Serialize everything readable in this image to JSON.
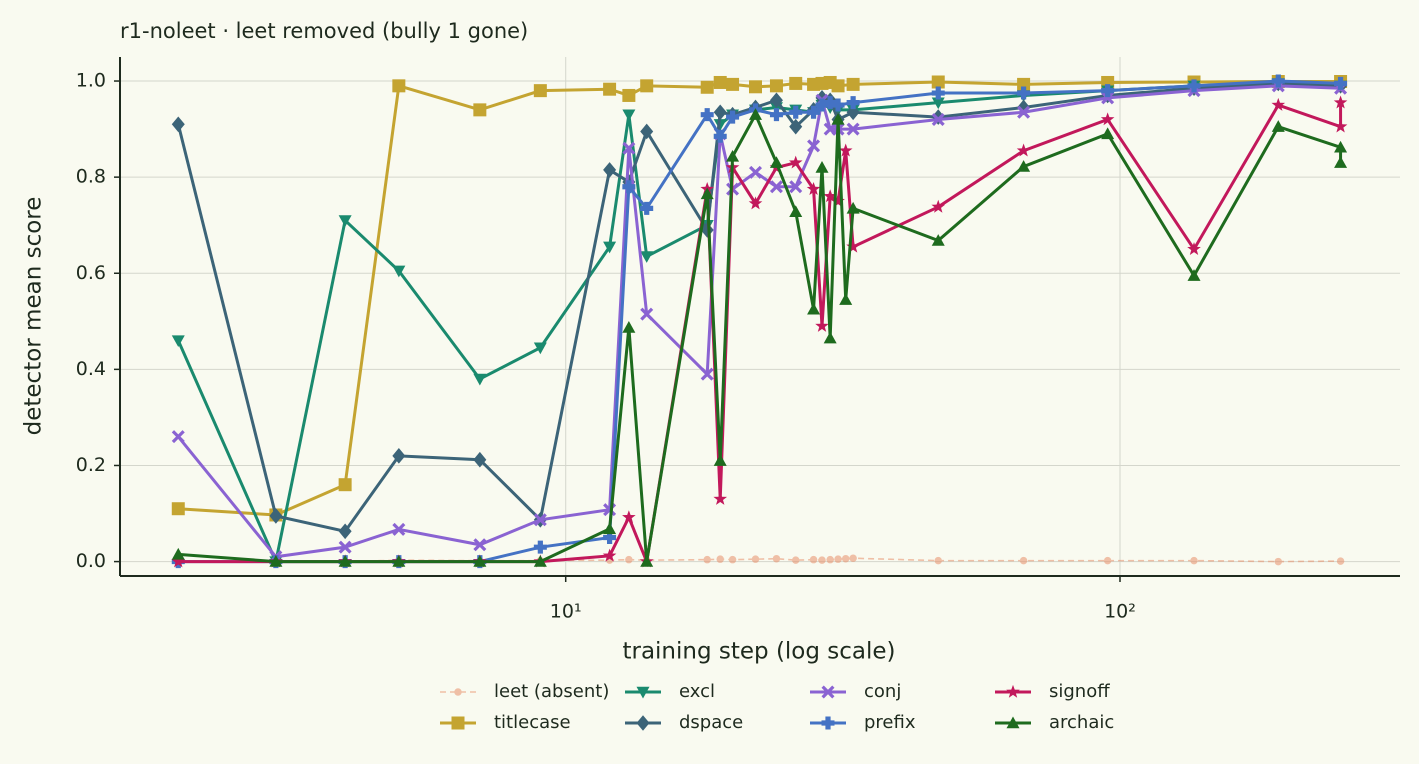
{
  "chart_data": {
    "type": "line",
    "title": "r1-noleet · leet removed (bully 1 gone)",
    "xlabel": "training step (log scale)",
    "ylabel": "detector mean score",
    "xscale": "log",
    "xlim": [
      1.57,
      320
    ],
    "ylim": [
      -0.03,
      1.05
    ],
    "xticks": [
      {
        "value": 10,
        "label": "10¹"
      },
      {
        "value": 100,
        "label": "10²"
      }
    ],
    "yticks": [
      {
        "value": 0,
        "label": "0.0"
      },
      {
        "value": 0.2,
        "label": "0.2"
      },
      {
        "value": 0.4,
        "label": "0.4"
      },
      {
        "value": 0.6,
        "label": "0.6"
      },
      {
        "value": 0.8,
        "label": "0.8"
      },
      {
        "value": 1,
        "label": "1.0"
      }
    ],
    "grid": true,
    "legend": "bottom",
    "series": [
      {
        "name": "leet (absent)",
        "color": "#e8906a",
        "marker": "o",
        "linestyle": "dashed",
        "x": [
          2,
          3,
          4,
          5,
          7,
          9,
          12,
          13,
          14,
          18,
          19,
          20,
          22,
          24,
          26,
          28,
          29,
          30,
          31,
          32,
          33,
          47,
          67,
          95,
          136,
          193,
          250
        ],
        "values": [
          0,
          0,
          0,
          0.003,
          0.002,
          0.002,
          0.003,
          0.004,
          0.003,
          0.004,
          0.005,
          0.004,
          0.005,
          0.006,
          0.003,
          0.004,
          0.003,
          0.004,
          0.005,
          0.006,
          0.007,
          0.002,
          0.002,
          0.002,
          0.002,
          0,
          0.001
        ]
      },
      {
        "name": "titlecase",
        "color": "#c4a431",
        "marker": "s",
        "linestyle": "solid",
        "x": [
          2,
          3,
          4,
          5,
          7,
          9,
          12,
          13,
          14,
          18,
          19,
          20,
          22,
          24,
          26,
          28,
          29,
          30,
          31,
          33,
          47,
          67,
          95,
          136,
          193,
          250
        ],
        "values": [
          0.11,
          0.097,
          0.16,
          0.99,
          0.94,
          0.98,
          0.983,
          0.97,
          0.99,
          0.987,
          0.997,
          0.993,
          0.988,
          0.99,
          0.995,
          0.993,
          0.995,
          0.997,
          0.99,
          0.993,
          0.998,
          0.993,
          0.997,
          0.998,
          0.999,
          0.999
        ]
      },
      {
        "name": "excl",
        "color": "#1a8a6e",
        "marker": "v",
        "linestyle": "solid",
        "x": [
          2,
          3,
          4,
          5,
          7,
          9,
          12,
          13,
          14,
          18,
          19,
          20,
          22,
          24,
          26,
          28,
          29,
          30,
          31,
          33,
          47,
          67,
          95,
          136,
          193,
          250
        ],
        "values": [
          0.46,
          0,
          0.71,
          0.605,
          0.38,
          0.445,
          0.655,
          0.93,
          0.635,
          0.7,
          0.91,
          0.93,
          0.94,
          0.945,
          0.94,
          0.935,
          0.95,
          0.945,
          0.94,
          0.94,
          0.955,
          0.97,
          0.98,
          0.99,
          0.995,
          0.99
        ]
      },
      {
        "name": "dspace",
        "color": "#3c6478",
        "marker": "D",
        "linestyle": "solid",
        "x": [
          2,
          3,
          4,
          5,
          7,
          9,
          12,
          13,
          14,
          18,
          19,
          20,
          22,
          24,
          26,
          28,
          29,
          30,
          31,
          33,
          47,
          67,
          95,
          136,
          193,
          250
        ],
        "values": [
          0.91,
          0.095,
          0.063,
          0.22,
          0.212,
          0.087,
          0.815,
          0.79,
          0.895,
          0.69,
          0.935,
          0.93,
          0.945,
          0.96,
          0.905,
          0.94,
          0.965,
          0.96,
          0.92,
          0.935,
          0.925,
          0.945,
          0.97,
          0.985,
          0.995,
          0.99
        ]
      },
      {
        "name": "conj",
        "color": "#8a63d2",
        "marker": "X",
        "linestyle": "solid",
        "x": [
          2,
          3,
          4,
          5,
          7,
          9,
          12,
          13,
          14,
          18,
          19,
          20,
          22,
          24,
          26,
          28,
          29,
          30,
          31,
          33,
          47,
          67,
          95,
          136,
          193,
          250
        ],
        "values": [
          0.26,
          0.01,
          0.03,
          0.067,
          0.035,
          0.087,
          0.108,
          0.86,
          0.515,
          0.39,
          0.89,
          0.775,
          0.81,
          0.78,
          0.78,
          0.865,
          0.96,
          0.9,
          0.9,
          0.9,
          0.92,
          0.935,
          0.965,
          0.98,
          0.99,
          0.985
        ]
      },
      {
        "name": "prefix",
        "color": "#4472c4",
        "marker": "P",
        "linestyle": "solid",
        "x": [
          2,
          3,
          4,
          5,
          7,
          9,
          12,
          13,
          14,
          18,
          19,
          20,
          22,
          24,
          26,
          28,
          29,
          30,
          31,
          33,
          47,
          67,
          95,
          136,
          193,
          250
        ],
        "values": [
          0,
          0,
          0,
          0,
          0,
          0.03,
          0.05,
          0.78,
          0.735,
          0.93,
          0.885,
          0.925,
          0.94,
          0.93,
          0.935,
          0.935,
          0.95,
          0.955,
          0.95,
          0.955,
          0.975,
          0.975,
          0.98,
          0.99,
          1,
          0.995
        ]
      },
      {
        "name": "signoff",
        "color": "#c2185b",
        "marker": "*",
        "linestyle": "solid",
        "x": [
          2,
          3,
          4,
          5,
          7,
          9,
          12,
          13,
          14,
          18,
          19,
          20,
          22,
          24,
          26,
          28,
          29,
          30,
          31,
          32,
          33,
          47,
          67,
          95,
          136,
          193,
          250,
          250
        ],
        "values": [
          0,
          0,
          0,
          0,
          0,
          0,
          0.012,
          0.092,
          0,
          0.775,
          0.13,
          0.82,
          0.745,
          0.82,
          0.83,
          0.775,
          0.49,
          0.76,
          0.75,
          0.855,
          0.655,
          0.738,
          0.855,
          0.92,
          0.65,
          0.95,
          0.905,
          0.955
        ]
      },
      {
        "name": "archaic",
        "color": "#1e6b1e",
        "marker": "^",
        "linestyle": "solid",
        "x": [
          2,
          3,
          4,
          5,
          7,
          9,
          12,
          13,
          14,
          18,
          19,
          20,
          22,
          24,
          26,
          28,
          29,
          30,
          31,
          32,
          33,
          47,
          67,
          95,
          136,
          193,
          250,
          250
        ],
        "values": [
          0.015,
          0,
          0,
          0,
          0,
          0,
          0.068,
          0.487,
          0,
          0.765,
          0.21,
          0.843,
          0.93,
          0.83,
          0.728,
          0.525,
          0.82,
          0.465,
          0.92,
          0.545,
          0.735,
          0.668,
          0.822,
          0.89,
          0.595,
          0.905,
          0.862,
          0.83
        ]
      }
    ]
  }
}
